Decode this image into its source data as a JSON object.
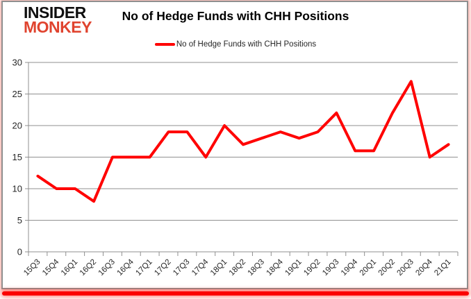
{
  "logo": {
    "line1": "INSIDER",
    "line2": "MONKEY"
  },
  "title": "No of Hedge Funds with CHH Positions",
  "legend": {
    "label": "No of Hedge Funds with CHH Positions"
  },
  "colors": {
    "series_red": "#ff0000",
    "logo_black": "#0f0f0f",
    "logo_red": "#e0442f",
    "grid_gray": "#8f8f8f",
    "axis_text": "#262626",
    "bottom_bar_red": "#fb0200"
  },
  "chart_data": {
    "type": "line",
    "title": "No of Hedge Funds with CHH Positions",
    "categories": [
      "15Q3",
      "15Q4",
      "16Q1",
      "16Q2",
      "16Q3",
      "16Q4",
      "17Q1",
      "17Q2",
      "17Q3",
      "17Q4",
      "18Q1",
      "18Q2",
      "18Q3",
      "18Q4",
      "19Q1",
      "19Q2",
      "19Q3",
      "19Q4",
      "20Q1",
      "20Q2",
      "20Q3",
      "20Q4",
      "21Q1"
    ],
    "series": [
      {
        "name": "No of Hedge Funds with CHH Positions",
        "color": "#ff0000",
        "values": [
          12,
          10,
          10,
          8,
          15,
          15,
          15,
          19,
          19,
          15,
          20,
          17,
          18,
          19,
          18,
          19,
          22,
          16,
          16,
          22,
          27,
          15,
          17
        ]
      }
    ],
    "xlabel": "",
    "ylabel": "",
    "ylim": [
      0,
      30
    ],
    "yticks": [
      0,
      5,
      10,
      15,
      20,
      25,
      30
    ],
    "grid": true,
    "legend_position": "top-center"
  }
}
